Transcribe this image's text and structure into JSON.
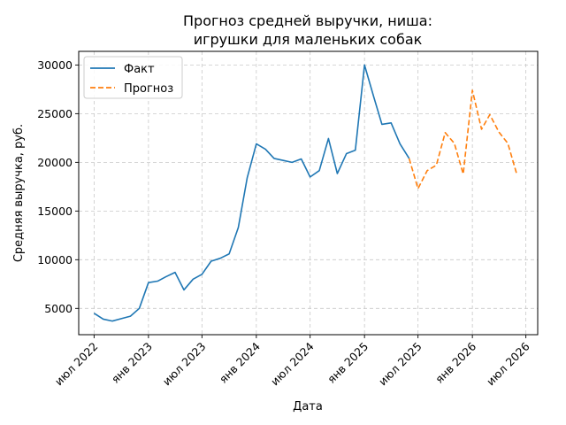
{
  "chart_data": {
    "type": "line",
    "title": [
      "Прогноз средней выручки, ниша:",
      "игрушки для маленьких собак"
    ],
    "xlabel": "Дата",
    "ylabel": "Средняя выручка, руб.",
    "grid": true,
    "legend": "top-left",
    "x_ticks": [
      {
        "date": "2022-07-01",
        "label": "июл 2022"
      },
      {
        "date": "2023-01-01",
        "label": "янв 2023"
      },
      {
        "date": "2023-07-01",
        "label": "июл 2023"
      },
      {
        "date": "2024-01-01",
        "label": "янв 2024"
      },
      {
        "date": "2024-07-01",
        "label": "июл 2024"
      },
      {
        "date": "2025-01-01",
        "label": "янв 2025"
      },
      {
        "date": "2025-07-01",
        "label": "июл 2025"
      },
      {
        "date": "2026-01-01",
        "label": "янв 2026"
      },
      {
        "date": "2026-07-01",
        "label": "июл 2026"
      }
    ],
    "y_ticks": [
      5000,
      10000,
      15000,
      20000,
      25000,
      30000
    ],
    "xlim": [
      "2022-05-10",
      "2026-08-10"
    ],
    "ylim": [
      2300,
      31400
    ],
    "series": [
      {
        "name": "Факт",
        "color": "#1f77b4",
        "style": "solid",
        "points": [
          [
            "2022-07-01",
            4500
          ],
          [
            "2022-08-01",
            3900
          ],
          [
            "2022-09-01",
            3700
          ],
          [
            "2022-10-01",
            3950
          ],
          [
            "2022-11-01",
            4200
          ],
          [
            "2022-12-01",
            5000
          ],
          [
            "2023-01-01",
            7650
          ],
          [
            "2023-02-01",
            7800
          ],
          [
            "2023-03-01",
            8250
          ],
          [
            "2023-04-01",
            8700
          ],
          [
            "2023-05-01",
            6900
          ],
          [
            "2023-06-01",
            8000
          ],
          [
            "2023-07-01",
            8500
          ],
          [
            "2023-08-01",
            9850
          ],
          [
            "2023-09-01",
            10150
          ],
          [
            "2023-10-01",
            10600
          ],
          [
            "2023-11-01",
            13300
          ],
          [
            "2023-12-01",
            18400
          ],
          [
            "2024-01-01",
            21900
          ],
          [
            "2024-02-01",
            21350
          ],
          [
            "2024-03-01",
            20400
          ],
          [
            "2024-04-01",
            20200
          ],
          [
            "2024-05-01",
            20000
          ],
          [
            "2024-06-01",
            20350
          ],
          [
            "2024-07-01",
            18500
          ],
          [
            "2024-08-01",
            19150
          ],
          [
            "2024-09-01",
            22450
          ],
          [
            "2024-10-01",
            18850
          ],
          [
            "2024-11-01",
            20900
          ],
          [
            "2024-12-01",
            21250
          ],
          [
            "2025-01-01",
            30000
          ],
          [
            "2025-02-01",
            26750
          ],
          [
            "2025-03-01",
            23900
          ],
          [
            "2025-04-01",
            24050
          ],
          [
            "2025-05-01",
            21900
          ],
          [
            "2025-06-01",
            20400
          ]
        ]
      },
      {
        "name": "Прогноз",
        "color": "#ff7f0e",
        "style": "dashed",
        "points": [
          [
            "2025-06-01",
            20400
          ],
          [
            "2025-07-01",
            17300
          ],
          [
            "2025-08-01",
            19150
          ],
          [
            "2025-09-01",
            19700
          ],
          [
            "2025-10-01",
            23050
          ],
          [
            "2025-11-01",
            21950
          ],
          [
            "2025-12-01",
            18800
          ],
          [
            "2026-01-01",
            27400
          ],
          [
            "2026-02-01",
            23400
          ],
          [
            "2026-03-01",
            24900
          ],
          [
            "2026-04-01",
            23100
          ],
          [
            "2026-05-01",
            21950
          ],
          [
            "2026-06-01",
            18700
          ]
        ]
      }
    ]
  }
}
